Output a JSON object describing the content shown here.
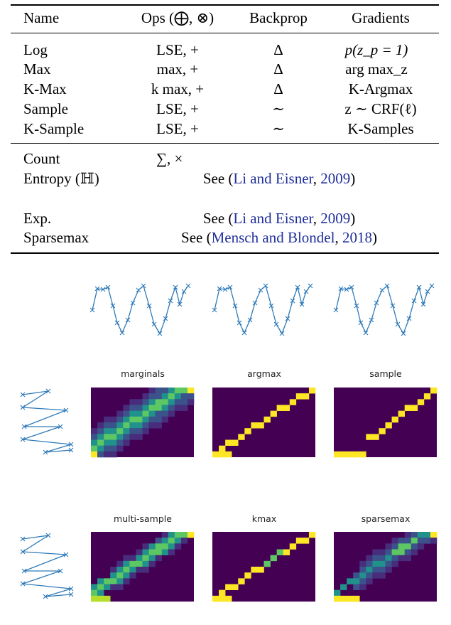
{
  "table": {
    "headers": [
      "Name",
      "Ops (⨁, ⊗)",
      "Backprop",
      "Gradients"
    ],
    "rows": [
      {
        "name": "Log",
        "ops": "LSE, +",
        "backprop": "Δ",
        "gradients": "p(z_p = 1)"
      },
      {
        "name": "Max",
        "ops": "max, +",
        "backprop": "Δ",
        "gradients": "arg max_z"
      },
      {
        "name": "K-Max",
        "ops": "k max, +",
        "backprop": "Δ",
        "gradients": "K-Argmax"
      },
      {
        "name": "Sample",
        "ops": "LSE, +",
        "backprop": "∼",
        "gradients": "z ∼ CRF(ℓ)"
      },
      {
        "name": "K-Sample",
        "ops": "LSE, +",
        "backprop": "∼",
        "gradients": "K-Samples"
      }
    ],
    "extra_rows": [
      {
        "name": "Count",
        "text": "∑, ×"
      },
      {
        "name": "Entropy (ℍ)",
        "text_pre": "See (",
        "cite": "Li and Eisner",
        "comma": ", ",
        "year": "2009",
        "text_post": ")"
      },
      {
        "name": "Exp.",
        "text_pre": "See (",
        "cite": "Li and Eisner",
        "comma": ", ",
        "year": "2009",
        "text_post": ")"
      },
      {
        "name": "Sparsemax",
        "text_pre": "See (",
        "cite": "Mensch and Blondel",
        "comma": ", ",
        "year": "2018",
        "text_post": ")"
      }
    ]
  },
  "figure": {
    "captions_row1": [
      "marginals",
      "argmax",
      "sample"
    ],
    "captions_row2": [
      "multi-sample",
      "kmax",
      "sparsemax"
    ],
    "colors": {
      "line": "#2f7ab8",
      "bg": "#440154",
      "yellow": "#fde725",
      "green": "#5dc863",
      "teal": "#21918c",
      "blue": "#3b528b"
    }
  }
}
